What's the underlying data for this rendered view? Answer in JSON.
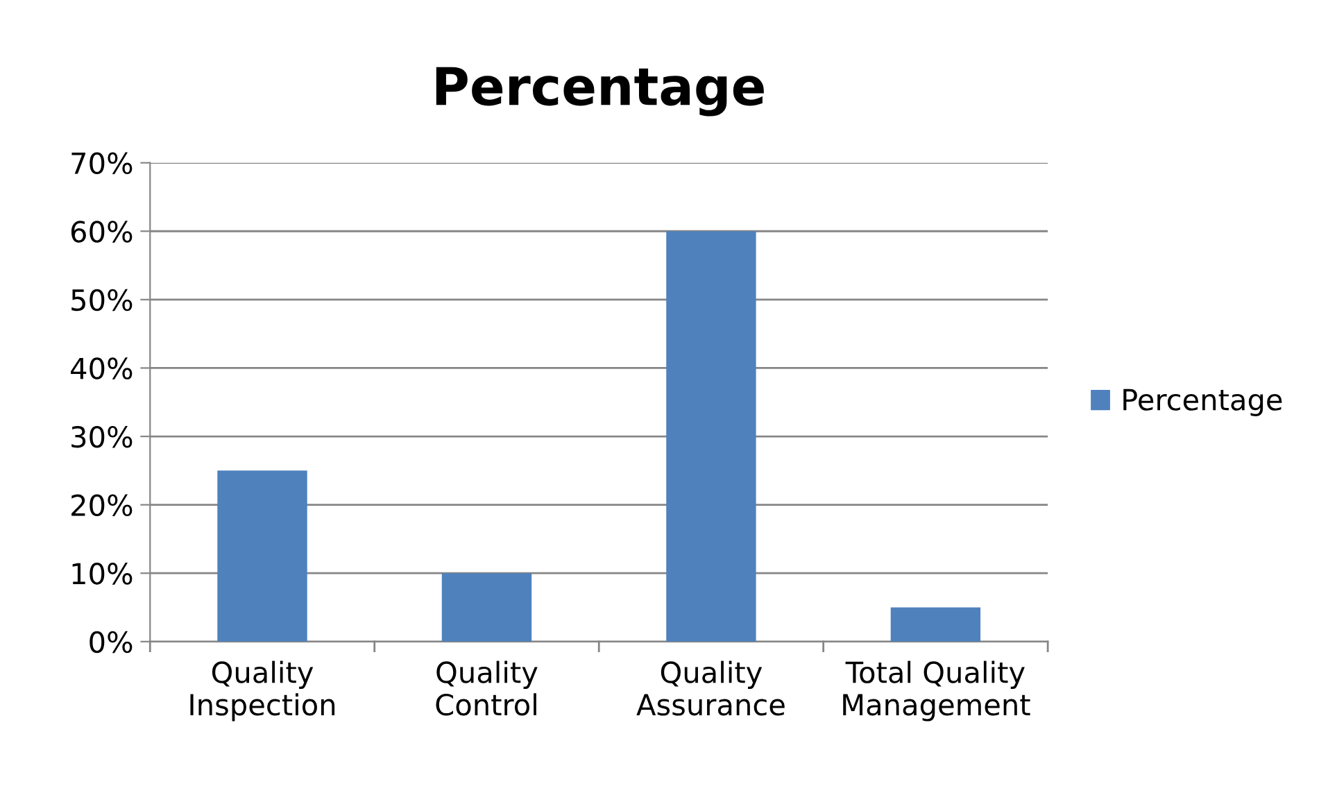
{
  "chart_data": {
    "type": "bar",
    "title": "Percentage",
    "categories": [
      "Quality Inspection",
      "Quality Control",
      "Quality Assurance",
      "Total Quality Management"
    ],
    "series": [
      {
        "name": "Percentage",
        "color": "#4f81bd",
        "values": [
          25,
          10,
          60,
          5
        ]
      }
    ],
    "ylim": [
      0,
      70
    ],
    "yticks": [
      {
        "value": 0,
        "label": "0%"
      },
      {
        "value": 10,
        "label": "10%"
      },
      {
        "value": 20,
        "label": "20%"
      },
      {
        "value": 30,
        "label": "30%"
      },
      {
        "value": 40,
        "label": "40%"
      },
      {
        "value": 50,
        "label": "50%"
      },
      {
        "value": 60,
        "label": "60%"
      },
      {
        "value": 70,
        "label": "70%"
      }
    ],
    "grid": "y",
    "legend": "right"
  }
}
